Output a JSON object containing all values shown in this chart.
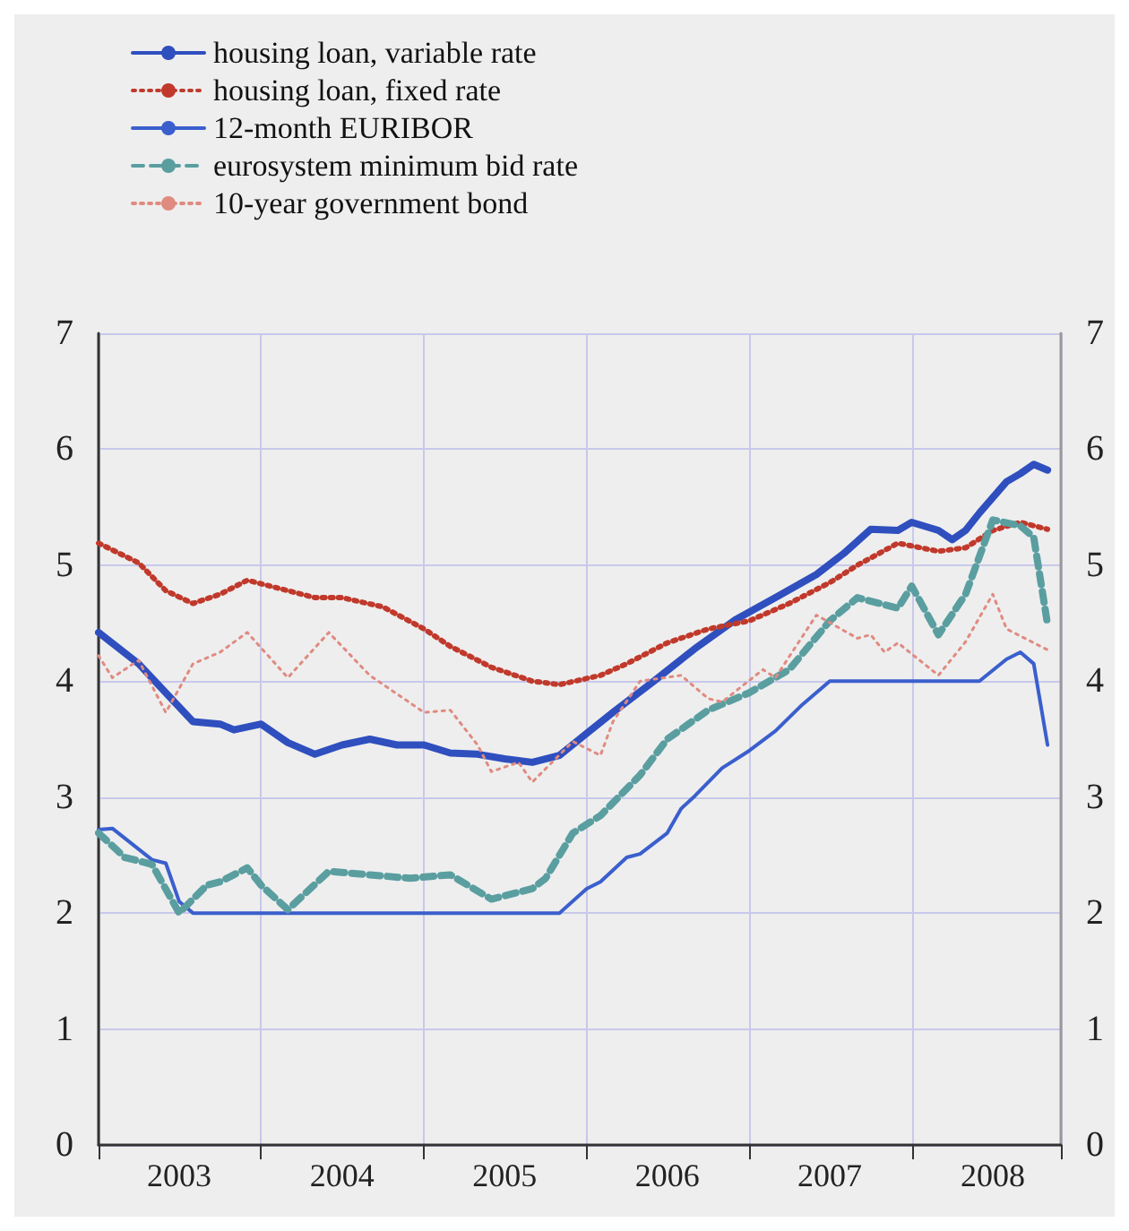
{
  "chart_data": {
    "type": "line",
    "xlim": [
      "2003-01",
      "2008-12"
    ],
    "xticks": [
      {
        "value": "2003-01",
        "label": null
      },
      {
        "value": "2004-01",
        "label": null
      },
      {
        "value": "2005-01",
        "label": null
      },
      {
        "value": "2006-01",
        "label": null
      },
      {
        "value": "2007-01",
        "label": null
      },
      {
        "value": "2008-01",
        "label": null
      },
      {
        "value": "2008-12",
        "label": null
      },
      {
        "value": "2003-07",
        "label": "2003"
      },
      {
        "value": "2004-07",
        "label": "2004"
      },
      {
        "value": "2005-07",
        "label": "2005"
      },
      {
        "value": "2006-07",
        "label": "2006"
      },
      {
        "value": "2007-07",
        "label": "2007"
      },
      {
        "value": "2008-07",
        "label": "2008"
      }
    ],
    "ylim": [
      0,
      7
    ],
    "yticks": [
      0,
      1,
      2,
      3,
      4,
      5,
      6,
      7
    ],
    "y2lim": [
      0,
      7
    ],
    "y2ticks": [
      0,
      1,
      2,
      3,
      4,
      5,
      6,
      7
    ],
    "grid": true,
    "legend": "top left",
    "series": [
      {
        "name": "housing loan, variable rate",
        "color": "#2f4fbf",
        "line_style": "solid",
        "x": [
          "2003-01",
          "2003-04",
          "2003-06",
          "2003-08",
          "2003-10",
          "2003-11",
          "2004-01",
          "2004-03",
          "2004-05",
          "2004-07",
          "2004-09",
          "2004-11",
          "2005-01",
          "2005-03",
          "2005-05",
          "2005-07",
          "2005-09",
          "2005-11",
          "2006-01",
          "2006-03",
          "2006-06",
          "2006-09",
          "2006-12",
          "2007-03",
          "2007-06",
          "2007-08",
          "2007-10",
          "2007-12",
          "2008-01",
          "2008-03",
          "2008-04",
          "2008-05",
          "2008-06",
          "2008-08",
          "2008-09",
          "2008-10",
          "2008-11"
        ],
        "values": [
          4.42,
          4.15,
          3.9,
          3.65,
          3.63,
          3.58,
          3.63,
          3.47,
          3.37,
          3.45,
          3.5,
          3.45,
          3.45,
          3.38,
          3.37,
          3.33,
          3.3,
          3.36,
          3.55,
          3.73,
          4.0,
          4.28,
          4.53,
          4.72,
          4.92,
          5.1,
          5.31,
          5.3,
          5.37,
          5.3,
          5.22,
          5.3,
          5.45,
          5.72,
          5.79,
          5.87,
          5.82
        ]
      },
      {
        "name": "housing loan, fixed rate",
        "color": "#c0392b",
        "line_style": "dotted",
        "x": [
          "2003-01",
          "2003-04",
          "2003-06",
          "2003-08",
          "2003-10",
          "2003-12",
          "2004-05",
          "2004-07",
          "2004-10",
          "2005-01",
          "2005-03",
          "2005-06",
          "2005-09",
          "2005-11",
          "2006-02",
          "2006-04",
          "2006-07",
          "2006-10",
          "2007-01",
          "2007-04",
          "2007-07",
          "2007-09",
          "2007-12",
          "2008-03",
          "2008-05",
          "2008-07",
          "2008-09",
          "2008-11"
        ],
        "values": [
          5.19,
          5.02,
          4.78,
          4.67,
          4.75,
          4.87,
          4.72,
          4.72,
          4.64,
          4.45,
          4.3,
          4.12,
          4.0,
          3.97,
          4.05,
          4.15,
          4.33,
          4.45,
          4.52,
          4.67,
          4.85,
          5.0,
          5.19,
          5.12,
          5.15,
          5.3,
          5.37,
          5.31
        ]
      },
      {
        "name": "12-month EURIBOR",
        "color": "#3a5fcd",
        "line_style": "solid",
        "x": [
          "2003-01",
          "2003-02",
          "2003-05",
          "2003-06",
          "2003-07",
          "2003-08",
          "2005-11",
          "2006-01",
          "2006-02",
          "2006-04",
          "2006-05",
          "2006-07",
          "2006-08",
          "2006-09",
          "2006-11",
          "2007-01",
          "2007-03",
          "2007-05",
          "2007-07",
          "2008-06",
          "2008-08",
          "2008-09",
          "2008-10",
          "2008-11"
        ],
        "values": [
          2.72,
          2.73,
          2.46,
          2.43,
          2.1,
          2.0,
          2.0,
          2.21,
          2.27,
          2.48,
          2.51,
          2.69,
          2.9,
          3.01,
          3.25,
          3.4,
          3.57,
          3.8,
          4.0,
          4.0,
          4.19,
          4.25,
          4.15,
          3.45
        ]
      },
      {
        "name": "eurosystem minimum bid rate",
        "color": "#5a9ea0",
        "line_style": "dashed",
        "x": [
          "2003-01",
          "2003-03",
          "2003-05",
          "2003-07",
          "2003-09",
          "2003-10",
          "2003-12",
          "2004-01",
          "2004-03",
          "2004-06",
          "2004-09",
          "2004-12",
          "2005-03",
          "2005-06",
          "2005-09",
          "2005-10",
          "2005-12",
          "2006-02",
          "2006-05",
          "2006-07",
          "2006-10",
          "2007-01",
          "2007-04",
          "2007-07",
          "2007-09",
          "2007-12",
          "2008-01",
          "2008-03",
          "2008-05",
          "2008-07",
          "2008-09",
          "2008-10",
          "2008-11"
        ],
        "values": [
          2.69,
          2.48,
          2.42,
          2.0,
          2.24,
          2.27,
          2.39,
          2.24,
          2.03,
          2.36,
          2.33,
          2.3,
          2.33,
          2.12,
          2.21,
          2.3,
          2.69,
          2.84,
          3.19,
          3.5,
          3.75,
          3.9,
          4.1,
          4.52,
          4.72,
          4.63,
          4.82,
          4.4,
          4.75,
          5.39,
          5.34,
          5.24,
          4.49
        ]
      },
      {
        "name": "10-year government bond",
        "color": "#e08a80",
        "line_style": "dotted",
        "x": [
          "2003-01",
          "2003-02",
          "2003-04",
          "2003-06",
          "2003-08",
          "2003-10",
          "2003-12",
          "2004-03",
          "2004-06",
          "2004-09",
          "2005-01",
          "2005-03",
          "2005-05",
          "2005-06",
          "2005-08",
          "2005-09",
          "2005-12",
          "2006-02",
          "2006-03",
          "2006-05",
          "2006-08",
          "2006-10",
          "2006-11",
          "2007-02",
          "2007-03",
          "2007-06",
          "2007-09",
          "2007-10",
          "2007-11",
          "2007-12",
          "2008-03",
          "2008-05",
          "2008-07",
          "2008-08",
          "2008-11"
        ],
        "values": [
          4.22,
          4.03,
          4.18,
          3.73,
          4.15,
          4.25,
          4.42,
          4.03,
          4.42,
          4.05,
          3.73,
          3.75,
          3.45,
          3.22,
          3.3,
          3.13,
          3.48,
          3.36,
          3.65,
          4.0,
          4.05,
          3.85,
          3.82,
          4.1,
          4.03,
          4.57,
          4.37,
          4.4,
          4.25,
          4.33,
          4.05,
          4.34,
          4.75,
          4.45,
          4.27
        ]
      }
    ]
  }
}
